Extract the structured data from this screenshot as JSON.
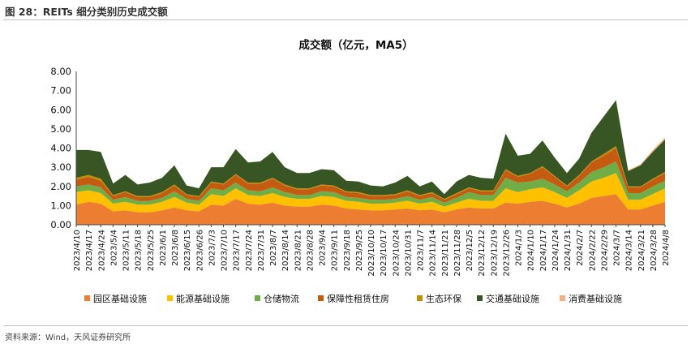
{
  "header": {
    "figure_label": "图 28：REITs 细分类别历史成交额"
  },
  "footer": {
    "source": "资料来源：Wind，天风证券研究所"
  },
  "chart_data": {
    "type": "area",
    "stacked": true,
    "title": "成交额（亿元，MA5）",
    "xlabel": "",
    "ylabel": "",
    "ylim": [
      0,
      8
    ],
    "yticks": [
      "0.00",
      "1.00",
      "2.00",
      "3.00",
      "4.00",
      "5.00",
      "6.00",
      "7.00",
      "8.00"
    ],
    "grid": false,
    "legend_position": "bottom",
    "x": [
      "2023/4/10",
      "2023/4/17",
      "2023/4/24",
      "2023/5/4",
      "2023/5/11",
      "2023/5/18",
      "2023/5/25",
      "2023/6/1",
      "2023/6/8",
      "2023/6/15",
      "2023/6/26",
      "2023/7/3",
      "2023/7/10",
      "2023/7/17",
      "2023/7/24",
      "2023/7/31",
      "2023/8/7",
      "2023/8/14",
      "2023/8/21",
      "2023/8/28",
      "2023/9/4",
      "2023/9/11",
      "2023/9/18",
      "2023/9/25",
      "2023/10/10",
      "2023/10/17",
      "2023/10/24",
      "2023/10/31",
      "2023/11/7",
      "2023/11/14",
      "2023/11/21",
      "2023/11/28",
      "2023/12/5",
      "2023/12/12",
      "2023/12/19",
      "2023/12/26",
      "2024/1/3",
      "2024/1/10",
      "2024/1/17",
      "2024/1/24",
      "2024/1/31",
      "2024/2/7",
      "2024/2/22",
      "2024/2/29",
      "2024/3/7",
      "2024/3/14",
      "2024/3/21",
      "2024/3/28",
      "2024/4/8"
    ],
    "series": [
      {
        "name": "园区基础设施",
        "color": "#ED7D31",
        "values": [
          1.05,
          1.2,
          1.1,
          0.7,
          0.75,
          0.65,
          0.65,
          0.75,
          0.9,
          0.75,
          0.7,
          1.05,
          1.0,
          1.35,
          1.1,
          1.05,
          1.15,
          1.0,
          0.95,
          0.95,
          1.05,
          1.0,
          0.85,
          0.8,
          0.75,
          0.75,
          0.8,
          0.85,
          0.75,
          0.8,
          0.65,
          0.8,
          0.9,
          0.85,
          0.85,
          1.15,
          1.1,
          1.2,
          1.25,
          1.1,
          0.9,
          1.1,
          1.4,
          1.5,
          1.6,
          0.8,
          0.8,
          1.0,
          1.2
        ]
      },
      {
        "name": "能源基础设施",
        "color": "#FFC000",
        "values": [
          0.65,
          0.6,
          0.55,
          0.4,
          0.45,
          0.4,
          0.4,
          0.45,
          0.55,
          0.4,
          0.35,
          0.55,
          0.5,
          0.55,
          0.45,
          0.45,
          0.5,
          0.45,
          0.4,
          0.4,
          0.45,
          0.45,
          0.4,
          0.4,
          0.35,
          0.35,
          0.35,
          0.4,
          0.35,
          0.4,
          0.3,
          0.35,
          0.45,
          0.4,
          0.4,
          0.75,
          0.6,
          0.65,
          0.7,
          0.6,
          0.5,
          0.7,
          0.85,
          0.95,
          1.1,
          0.5,
          0.5,
          0.6,
          0.7
        ]
      },
      {
        "name": "仓储物流",
        "color": "#70AD47",
        "values": [
          0.3,
          0.3,
          0.3,
          0.2,
          0.25,
          0.2,
          0.2,
          0.2,
          0.3,
          0.2,
          0.2,
          0.3,
          0.3,
          0.3,
          0.25,
          0.25,
          0.3,
          0.25,
          0.2,
          0.2,
          0.25,
          0.25,
          0.2,
          0.2,
          0.2,
          0.2,
          0.2,
          0.25,
          0.2,
          0.25,
          0.2,
          0.25,
          0.35,
          0.3,
          0.3,
          0.55,
          0.5,
          0.4,
          0.45,
          0.4,
          0.35,
          0.4,
          0.5,
          0.55,
          0.6,
          0.35,
          0.35,
          0.4,
          0.4
        ]
      },
      {
        "name": "保障性租赁住房",
        "color": "#C55A11",
        "values": [
          0.35,
          0.4,
          0.35,
          0.2,
          0.25,
          0.2,
          0.2,
          0.25,
          0.3,
          0.2,
          0.2,
          0.3,
          0.3,
          0.4,
          0.35,
          0.4,
          0.45,
          0.35,
          0.3,
          0.3,
          0.3,
          0.3,
          0.25,
          0.25,
          0.2,
          0.2,
          0.2,
          0.25,
          0.2,
          0.2,
          0.15,
          0.2,
          0.2,
          0.2,
          0.2,
          0.4,
          0.3,
          0.4,
          0.6,
          0.4,
          0.25,
          0.35,
          0.5,
          0.6,
          0.7,
          0.3,
          0.3,
          0.35,
          0.4
        ]
      },
      {
        "name": "生态环保",
        "color": "#BF9000",
        "values": [
          0.1,
          0.1,
          0.1,
          0.05,
          0.05,
          0.05,
          0.05,
          0.05,
          0.05,
          0.05,
          0.05,
          0.05,
          0.05,
          0.05,
          0.05,
          0.05,
          0.05,
          0.05,
          0.05,
          0.05,
          0.05,
          0.05,
          0.05,
          0.05,
          0.05,
          0.05,
          0.05,
          0.05,
          0.05,
          0.05,
          0.05,
          0.05,
          0.05,
          0.05,
          0.05,
          0.05,
          0.05,
          0.05,
          0.05,
          0.05,
          0.05,
          0.05,
          0.05,
          0.1,
          0.1,
          0.05,
          0.05,
          0.05,
          0.05
        ]
      },
      {
        "name": "交通基础设施",
        "color": "#375623",
        "values": [
          1.45,
          1.3,
          1.4,
          0.6,
          0.85,
          0.6,
          0.7,
          0.75,
          1.0,
          0.45,
          0.4,
          0.75,
          0.85,
          1.3,
          1.05,
          1.1,
          1.35,
          0.9,
          0.8,
          0.8,
          0.8,
          0.8,
          0.55,
          0.55,
          0.5,
          0.45,
          0.6,
          0.75,
          0.45,
          0.55,
          0.25,
          0.6,
          0.65,
          0.65,
          0.6,
          1.85,
          1.05,
          1.0,
          1.35,
          0.95,
          0.65,
          0.85,
          1.5,
          1.95,
          2.4,
          0.8,
          1.1,
          1.4,
          1.7
        ]
      },
      {
        "name": "消费基础设施",
        "color": "#F4B183",
        "values": [
          0,
          0,
          0,
          0,
          0,
          0,
          0,
          0,
          0,
          0,
          0,
          0,
          0,
          0,
          0,
          0,
          0,
          0,
          0,
          0,
          0,
          0,
          0,
          0,
          0,
          0,
          0,
          0,
          0,
          0,
          0,
          0,
          0,
          0,
          0,
          0,
          0,
          0,
          0,
          0,
          0,
          0,
          0,
          0,
          0,
          0.05,
          0.05,
          0.1,
          0.1
        ]
      }
    ]
  }
}
